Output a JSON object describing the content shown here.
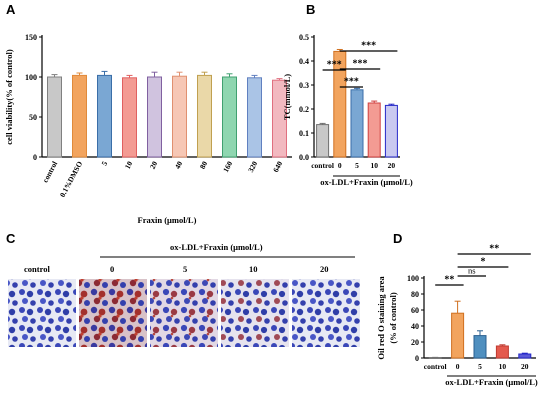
{
  "panel_labels": {
    "a": "A",
    "b": "B",
    "c": "C",
    "d": "D"
  },
  "colors": {
    "gray": "#c8c8c8",
    "orange": "#f2a45e",
    "blue": "#7aa7d3",
    "salmon": "#f39b93",
    "peach": "#f6c7b5",
    "khaki": "#ead8a8",
    "green": "#8fd6b0",
    "lavender": "#d0c3df",
    "pink": "#f2b9c0",
    "red": "#e45a4e",
    "ltblue": "#aac4e6",
    "navy": "#2528c8",
    "darkblue": "#3a6ea8"
  },
  "panel_c": {
    "header": "ox-LDL+Fraxin (μmol/L)",
    "control_label": "control",
    "dose_labels": [
      "0",
      "5",
      "10",
      "20"
    ]
  },
  "chart_data": [
    {
      "id": "A",
      "type": "bar",
      "categories": [
        "control",
        "0.1%DMSO",
        "5",
        "10",
        "20",
        "40",
        "80",
        "160",
        "320",
        "640"
      ],
      "values": [
        100,
        102,
        102,
        99,
        100,
        101,
        102,
        100,
        99,
        96
      ],
      "errors": [
        3,
        3,
        5,
        3,
        6,
        5,
        4,
        4,
        3,
        2
      ],
      "colors": [
        "#c8c8c8",
        "#f2a45e",
        "#7aa7d3",
        "#f39b93",
        "#d0c3df",
        "#f6c7b5",
        "#ead8a8",
        "#8fd6b0",
        "#aac4e6",
        "#f2b9c0"
      ],
      "edge_colors": [
        "#808080",
        "#e08a3a",
        "#3a6ea8",
        "#e06060",
        "#8060a0",
        "#e09070",
        "#c0a050",
        "#40a070",
        "#6080c0",
        "#e07080"
      ],
      "xlabel": "Fraxin (μmol/L)",
      "ylabel": "cell viability(% of control)",
      "ylim": [
        0,
        150
      ],
      "yticks": [
        0,
        50,
        100,
        150
      ]
    },
    {
      "id": "B",
      "type": "bar",
      "categories": [
        "control",
        "0",
        "5",
        "10",
        "20"
      ],
      "values": [
        0.135,
        0.44,
        0.28,
        0.225,
        0.215
      ],
      "errors": [
        0.005,
        0.008,
        0.006,
        0.008,
        0.005
      ],
      "colors": [
        "#c8c8c8",
        "#f2a45e",
        "#7aa7d3",
        "#f39b93",
        "#c9c9f0"
      ],
      "edge_colors": [
        "#707070",
        "#d07020",
        "#3a6ea8",
        "#d04040",
        "#2528c8"
      ],
      "xlabel": "ox-LDL+Fraxin (μmol/L)",
      "ylabel": "TC(mmol/L)",
      "ylim": [
        0,
        0.5
      ],
      "yticks": [
        0.0,
        0.1,
        0.2,
        0.3,
        0.4,
        0.5
      ],
      "significance": [
        {
          "from": 0,
          "to": 1,
          "label": "***"
        },
        {
          "from": 1,
          "to": 2,
          "label": "***"
        },
        {
          "from": 1,
          "to": 3,
          "label": "***"
        },
        {
          "from": 1,
          "to": 4,
          "label": "***"
        }
      ]
    },
    {
      "id": "D",
      "type": "bar",
      "categories": [
        "control",
        "0",
        "5",
        "10",
        "20"
      ],
      "values": [
        0.5,
        56,
        28,
        15,
        5
      ],
      "errors": [
        0.3,
        15,
        6,
        1.5,
        1
      ],
      "colors": [
        "#c8c8c8",
        "#f2a45e",
        "#4f8fbf",
        "#e45a4e",
        "#5a5ad8"
      ],
      "edge_colors": [
        "#707070",
        "#d07020",
        "#2a5f90",
        "#c03a30",
        "#2528c8"
      ],
      "xlabel": "ox-LDL+Fraxin (μmol/L)",
      "ylabel": "Oil red O staining area\n(% of control)",
      "ylim": [
        0,
        100
      ],
      "yticks": [
        0,
        20,
        40,
        60,
        80,
        100
      ],
      "significance": [
        {
          "from": 0,
          "to": 1,
          "label": "**"
        },
        {
          "from": 1,
          "to": 2,
          "label": "ns"
        },
        {
          "from": 1,
          "to": 3,
          "label": "*"
        },
        {
          "from": 1,
          "to": 4,
          "label": "**"
        }
      ]
    }
  ]
}
